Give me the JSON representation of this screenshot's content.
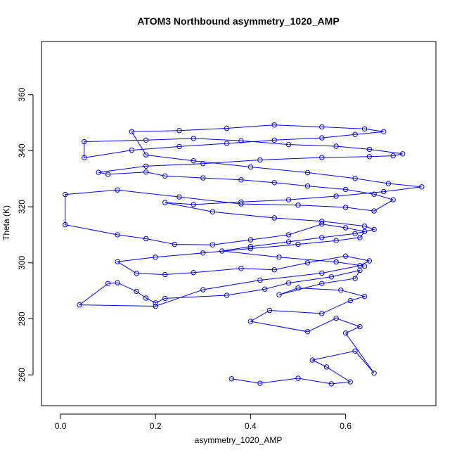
{
  "chart_data": {
    "type": "scatter",
    "title": "ATOM3 Northbound asymmetry_1020_AMP",
    "xlabel": "asymmetry_1020_AMP",
    "ylabel": "Theta (K)",
    "xlim": [
      -0.04,
      0.79
    ],
    "ylim": [
      249,
      379
    ],
    "xticks": [
      "0.0",
      "0.2",
      "0.4",
      "0.6"
    ],
    "yticks": [
      "260",
      "280",
      "300",
      "320",
      "340",
      "360"
    ],
    "grid": false,
    "legend": "none",
    "mode": "points+lines",
    "color": "#0000ff",
    "series": [
      {
        "x": [
          0.36,
          0.42,
          0.5,
          0.57,
          0.61,
          0.56,
          0.53,
          0.62,
          0.66,
          0.6,
          0.63,
          0.58,
          0.52,
          0.4,
          0.44,
          0.55,
          0.61,
          0.64,
          0.59,
          0.5,
          0.46,
          0.55,
          0.62,
          0.63,
          0.57,
          0.48,
          0.43,
          0.35,
          0.22,
          0.2,
          0.18,
          0.16,
          0.12,
          0.1,
          0.04,
          0.2,
          0.3,
          0.42,
          0.55,
          0.63,
          0.65,
          0.6,
          0.52,
          0.45,
          0.38,
          0.28,
          0.22,
          0.16,
          0.12,
          0.2,
          0.3,
          0.4,
          0.5,
          0.58,
          0.63,
          0.64,
          0.6,
          0.55,
          0.48,
          0.4,
          0.32,
          0.24,
          0.18,
          0.12,
          0.01,
          0.01,
          0.12,
          0.25,
          0.38,
          0.5,
          0.6,
          0.66,
          0.7,
          0.66,
          0.6,
          0.52,
          0.45,
          0.38,
          0.3,
          0.22,
          0.18,
          0.1,
          0.08,
          0.18,
          0.3,
          0.42,
          0.55,
          0.65,
          0.7,
          0.72,
          0.65,
          0.58,
          0.48,
          0.38,
          0.28,
          0.18,
          0.05,
          0.05,
          0.15,
          0.25,
          0.35,
          0.45,
          0.55,
          0.62,
          0.68,
          0.64,
          0.55,
          0.45,
          0.35,
          0.25,
          0.15,
          0.18,
          0.28,
          0.4,
          0.52,
          0.62,
          0.69,
          0.76,
          0.68,
          0.58,
          0.48,
          0.38,
          0.28,
          0.22,
          0.32,
          0.45,
          0.55,
          0.64,
          0.66,
          0.62,
          0.55,
          0.48,
          0.4,
          0.34,
          0.46,
          0.58,
          0.64
        ],
        "y": [
          258.6,
          257.0,
          258.8,
          256.8,
          257.5,
          262.8,
          265.3,
          268.5,
          260.6,
          274.9,
          277.2,
          280.2,
          275.4,
          279.1,
          283.0,
          281.9,
          286.5,
          288.0,
          290.2,
          291.0,
          288.6,
          292.6,
          294.4,
          297.3,
          295.0,
          292.8,
          290.6,
          288.4,
          287.3,
          285.7,
          287.4,
          289.8,
          292.9,
          292.6,
          285.0,
          284.5,
          290.4,
          293.8,
          296.3,
          299.0,
          300.7,
          302.4,
          300.0,
          297.5,
          298.0,
          296.5,
          295.8,
          296.2,
          300.4,
          302.0,
          303.5,
          305.1,
          306.6,
          307.9,
          309.0,
          311.2,
          312.5,
          313.8,
          310.0,
          308.2,
          306.4,
          306.6,
          308.6,
          310.0,
          313.6,
          324.4,
          326.0,
          323.5,
          321.0,
          320.6,
          319.8,
          318.5,
          322.5,
          324.5,
          326.2,
          327.4,
          328.6,
          329.6,
          330.3,
          331.0,
          332.4,
          331.6,
          332.3,
          334.5,
          335.4,
          336.7,
          337.6,
          337.9,
          338.2,
          338.9,
          340.5,
          341.6,
          342.2,
          343.6,
          344.4,
          343.8,
          343.2,
          337.5,
          340.2,
          341.5,
          342.6,
          343.8,
          344.6,
          345.8,
          346.8,
          347.8,
          348.5,
          349.2,
          348.0,
          347.2,
          346.8,
          338.5,
          336.4,
          334.2,
          332.2,
          330.1,
          328.3,
          327.1,
          325.4,
          323.8,
          322.5,
          321.7,
          320.8,
          321.5,
          318.2,
          316.0,
          314.8,
          313.1,
          311.9,
          310.4,
          309.0,
          307.5,
          305.8,
          304.2,
          302.0,
          300.3,
          298.8
        ]
      }
    ]
  }
}
